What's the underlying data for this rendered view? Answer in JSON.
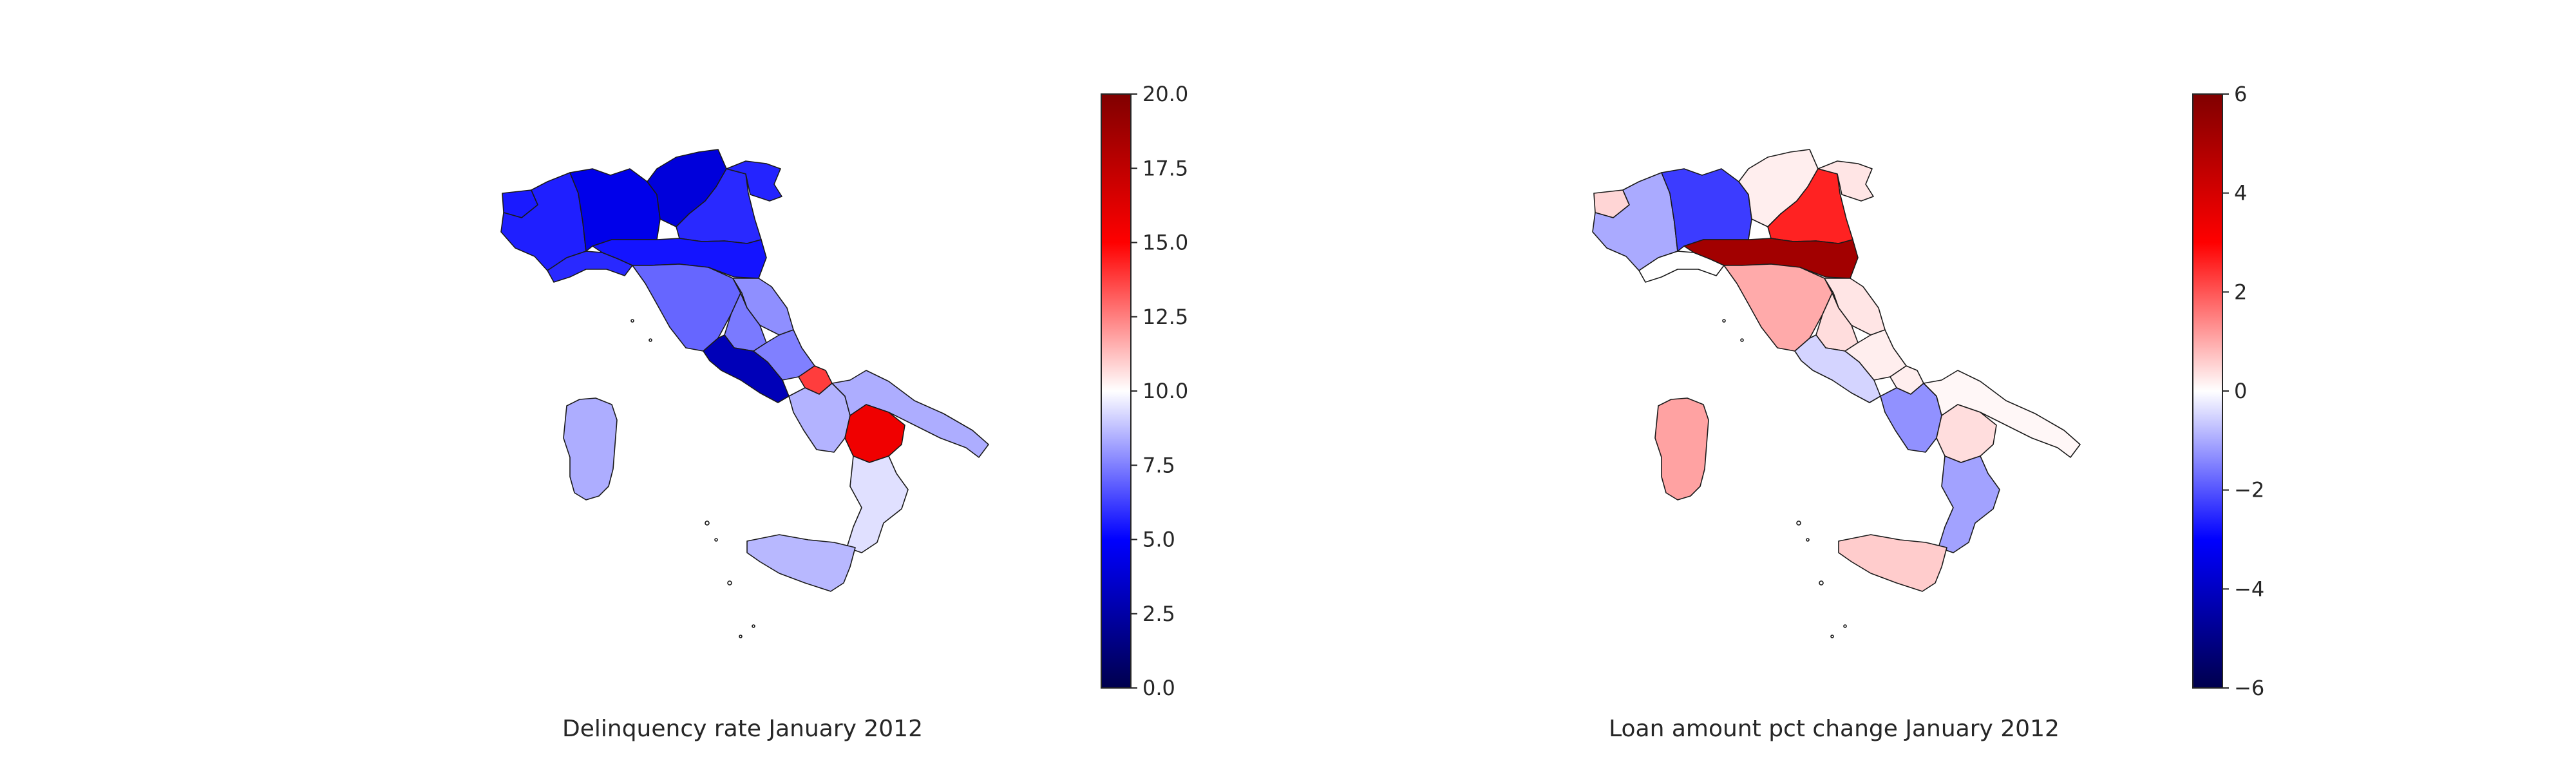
{
  "maps": [
    {
      "caption": "Delinquency rate January 2012",
      "colorbar": {
        "cmap": "seismic",
        "min": 0,
        "max": 20,
        "ticks": [
          "0.0",
          "2.5",
          "5.0",
          "7.5",
          "10.0",
          "12.5",
          "15.0",
          "17.5",
          "20.0"
        ]
      },
      "regions": [
        {
          "name": "Valle d'Aosta",
          "value": 5.5
        },
        {
          "name": "Piemonte",
          "value": 5.6
        },
        {
          "name": "Liguria",
          "value": 5.8
        },
        {
          "name": "Lombardia",
          "value": 4.4
        },
        {
          "name": "Trentino-Alto Adige",
          "value": 4.0
        },
        {
          "name": "Veneto",
          "value": 5.8
        },
        {
          "name": "Friuli-Venezia Giulia",
          "value": 5.7
        },
        {
          "name": "Emilia-Romagna",
          "value": 5.4
        },
        {
          "name": "Toscana",
          "value": 7.0
        },
        {
          "name": "Umbria",
          "value": 7.4
        },
        {
          "name": "Marche",
          "value": 7.8
        },
        {
          "name": "Lazio",
          "value": 3.0
        },
        {
          "name": "Abruzzo",
          "value": 7.5
        },
        {
          "name": "Molise",
          "value": 13.8
        },
        {
          "name": "Campania",
          "value": 8.5
        },
        {
          "name": "Puglia",
          "value": 8.4
        },
        {
          "name": "Basilicata",
          "value": 15.6
        },
        {
          "name": "Calabria",
          "value": 9.4
        },
        {
          "name": "Sicilia",
          "value": 8.6
        },
        {
          "name": "Sardegna",
          "value": 8.4
        }
      ]
    },
    {
      "caption": "Loan amount pct change January 2012",
      "colorbar": {
        "cmap": "seismic",
        "min": -6,
        "max": 6,
        "ticks": [
          "−6",
          "−4",
          "−2",
          "0",
          "2",
          "4",
          "6"
        ]
      },
      "regions": [
        {
          "name": "Valle d'Aosta",
          "value": 0.5
        },
        {
          "name": "Piemonte",
          "value": -1.0
        },
        {
          "name": "Liguria",
          "value": 0.0
        },
        {
          "name": "Lombardia",
          "value": -2.3
        },
        {
          "name": "Trentino-Alto Adige",
          "value": 0.2
        },
        {
          "name": "Veneto",
          "value": 2.6
        },
        {
          "name": "Friuli-Venezia Giulia",
          "value": 0.3
        },
        {
          "name": "Emilia-Romagna",
          "value": 5.2
        },
        {
          "name": "Toscana",
          "value": 1.0
        },
        {
          "name": "Umbria",
          "value": 0.4
        },
        {
          "name": "Marche",
          "value": 0.3
        },
        {
          "name": "Lazio",
          "value": -0.5
        },
        {
          "name": "Abruzzo",
          "value": 0.2
        },
        {
          "name": "Molise",
          "value": 0.2
        },
        {
          "name": "Campania",
          "value": -1.3
        },
        {
          "name": "Puglia",
          "value": 0.1
        },
        {
          "name": "Basilicata",
          "value": 0.4
        },
        {
          "name": "Calabria",
          "value": -1.1
        },
        {
          "name": "Sicilia",
          "value": 0.6
        },
        {
          "name": "Sardegna",
          "value": 1.1
        }
      ]
    }
  ]
}
